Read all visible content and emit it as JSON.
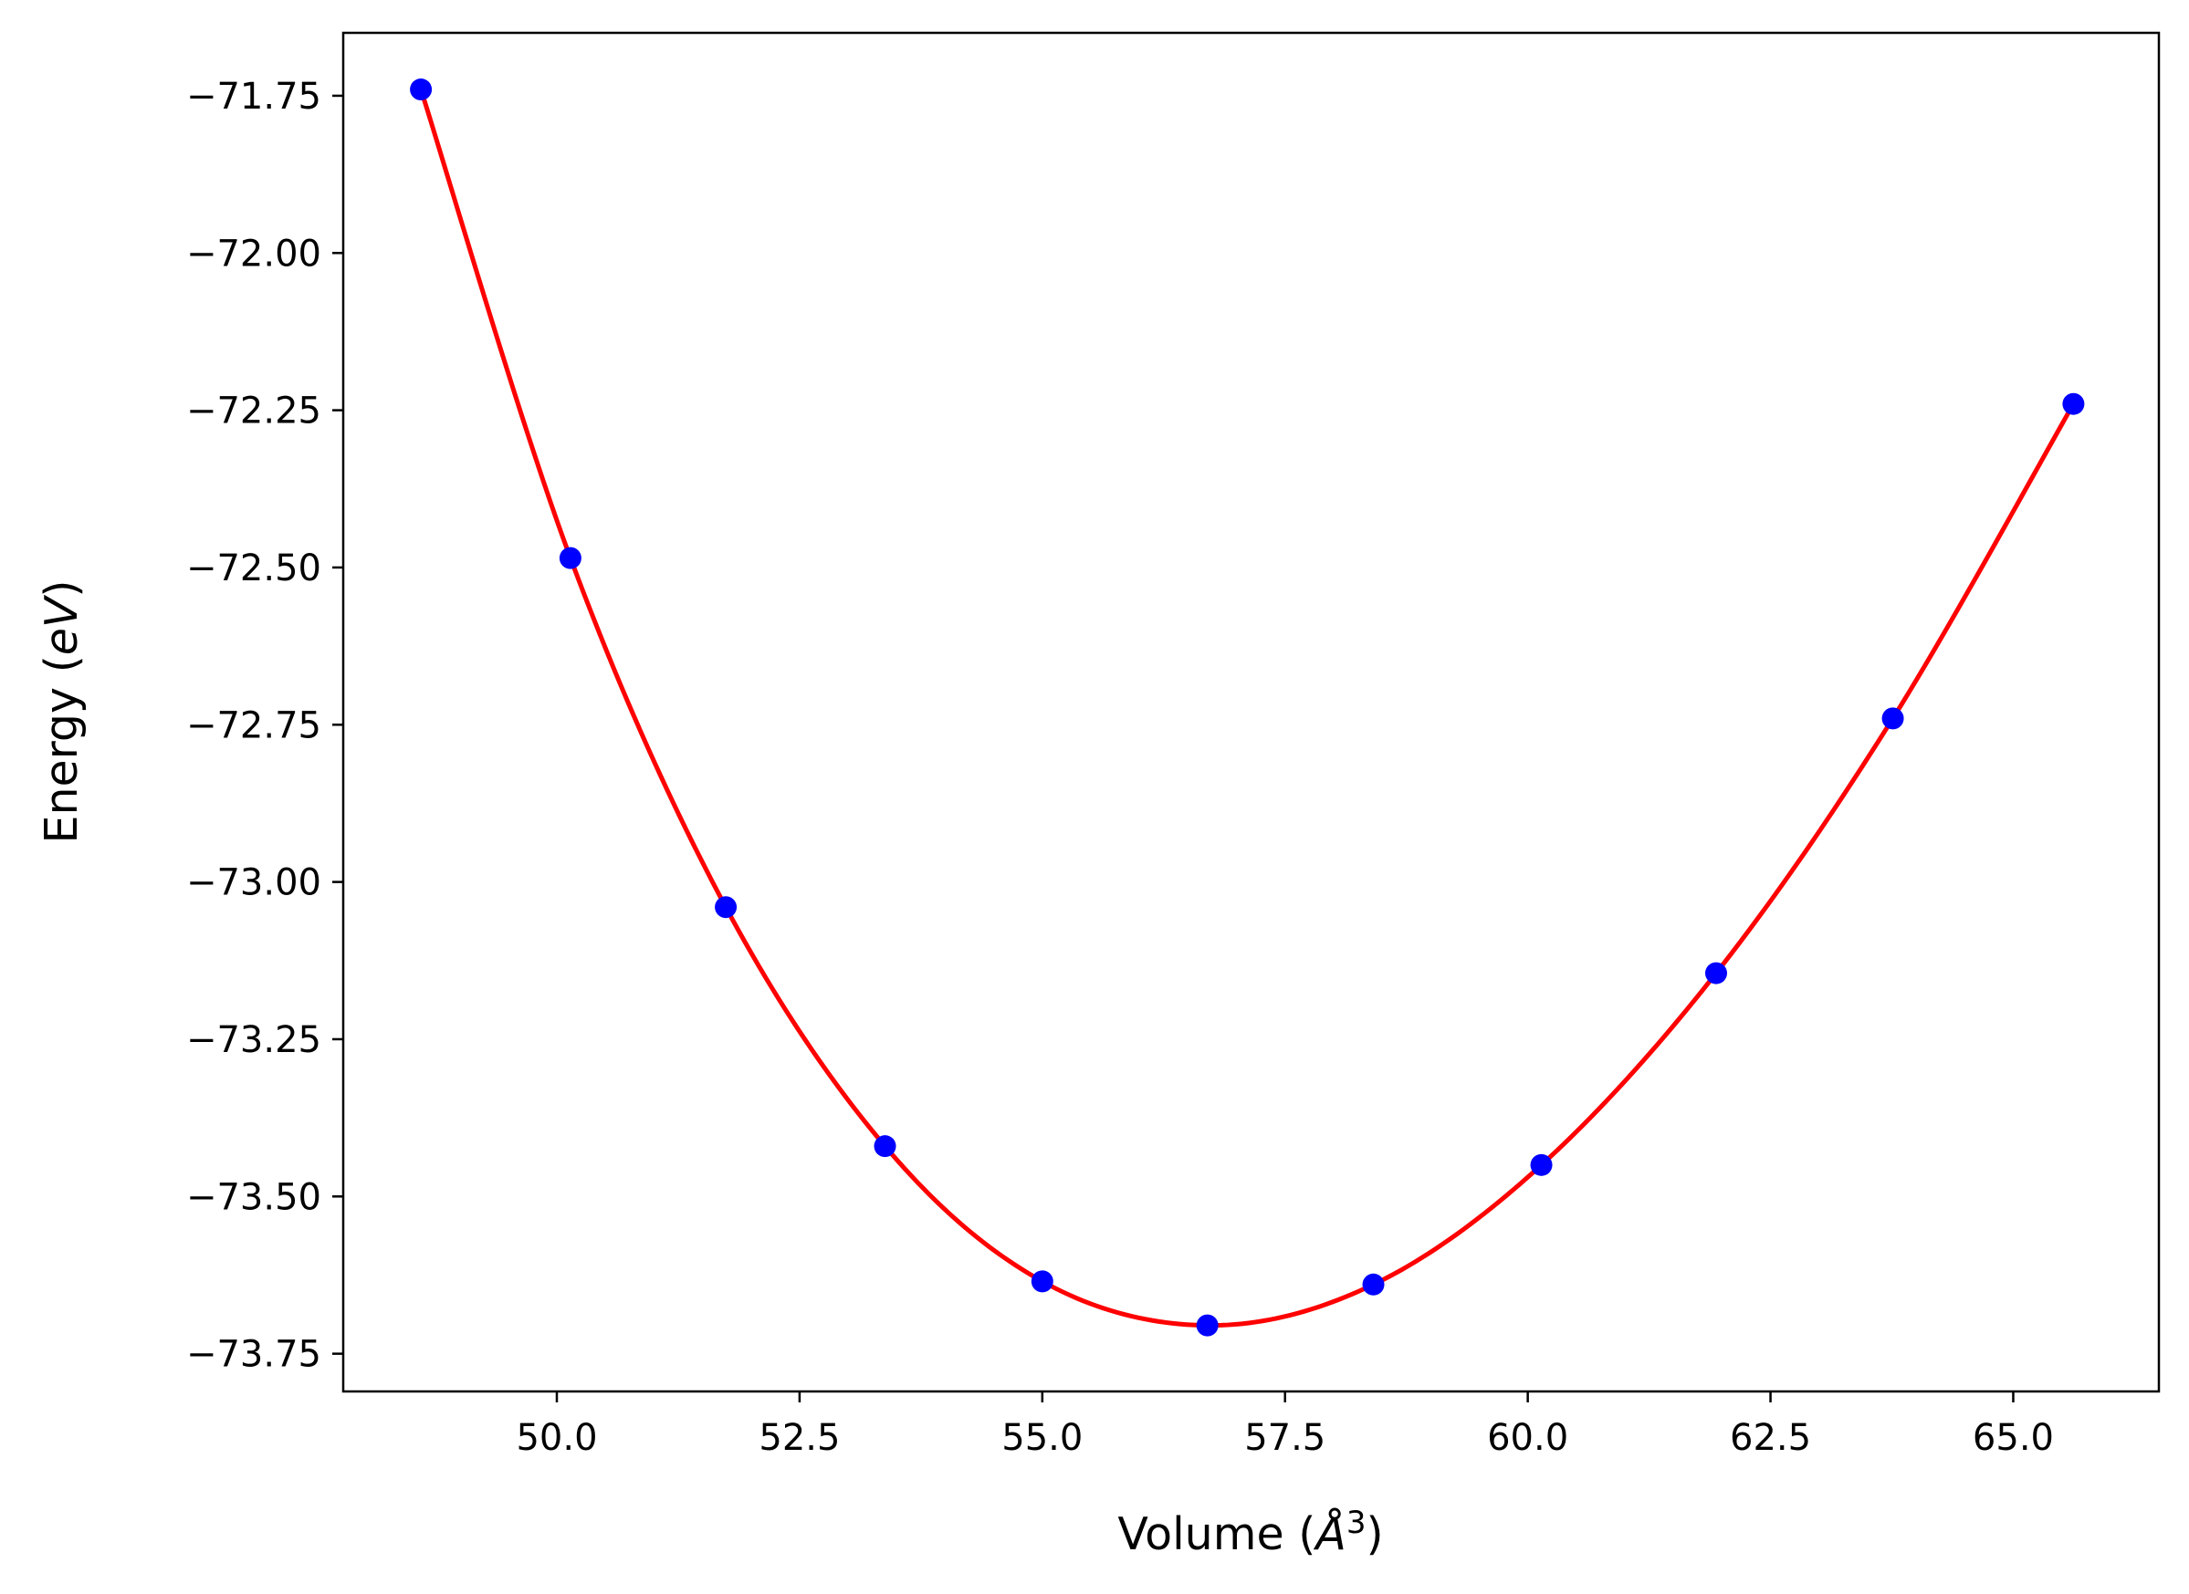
{
  "chart_data": {
    "type": "scatter",
    "title": "",
    "xlabel": {
      "prefix": "Volume (",
      "unit": "Å",
      "exponent": "3",
      "suffix": ")"
    },
    "ylabel": {
      "prefix": "Energy (",
      "unit": "eV",
      "suffix": ")"
    },
    "xlim": [
      47.8,
      66.5
    ],
    "ylim": [
      -73.81,
      -71.65
    ],
    "xticks": [
      {
        "value": 50.0,
        "label": "50.0"
      },
      {
        "value": 52.5,
        "label": "52.5"
      },
      {
        "value": 55.0,
        "label": "55.0"
      },
      {
        "value": 57.5,
        "label": "57.5"
      },
      {
        "value": 60.0,
        "label": "60.0"
      },
      {
        "value": 62.5,
        "label": "62.5"
      },
      {
        "value": 65.0,
        "label": "65.0"
      }
    ],
    "yticks": [
      {
        "value": -71.75,
        "label": "−71.75"
      },
      {
        "value": -72.0,
        "label": "−72.00"
      },
      {
        "value": -72.25,
        "label": "−72.25"
      },
      {
        "value": -72.5,
        "label": "−72.50"
      },
      {
        "value": -72.75,
        "label": "−72.75"
      },
      {
        "value": -73.0,
        "label": "−73.00"
      },
      {
        "value": -73.25,
        "label": "−73.25"
      },
      {
        "value": -73.5,
        "label": "−73.50"
      },
      {
        "value": -73.75,
        "label": "−73.75"
      }
    ],
    "grid": false,
    "series": [
      {
        "kind": "points",
        "color": "#0000ff",
        "x": [
          48.6,
          50.14,
          51.74,
          53.38,
          55.0,
          56.7,
          58.41,
          60.14,
          61.94,
          63.76,
          65.62
        ],
        "y": [
          -71.74,
          -72.485,
          -73.04,
          -73.42,
          -73.635,
          -73.705,
          -73.64,
          -73.45,
          -73.145,
          -72.74,
          -72.24
        ]
      },
      {
        "kind": "fit-curve",
        "color": "#ff0000"
      }
    ]
  }
}
